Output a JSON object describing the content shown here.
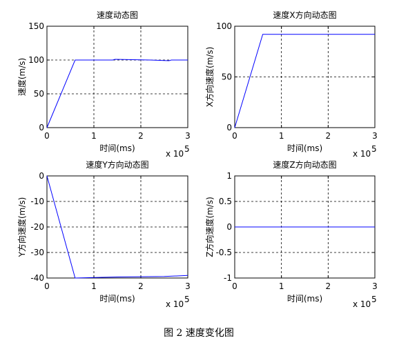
{
  "chart_data": [
    {
      "type": "line",
      "title": "速度动态图",
      "x_label": "时间(ms)",
      "y_label": "速度(m/s)",
      "x_scale": {
        "base": "x 10",
        "exponent": "5"
      },
      "x": [
        0,
        0.6,
        1.4,
        1.45,
        2.2,
        2.6,
        2.65,
        3
      ],
      "series": [
        {
          "name": "速度",
          "color": "#0000ff",
          "values": [
            0,
            100,
            100,
            101,
            100,
            99,
            100,
            100
          ]
        }
      ],
      "xlim": [
        0,
        3
      ],
      "xticks": [
        0,
        1,
        2,
        3
      ],
      "ylim": [
        0,
        150
      ],
      "yticks": [
        0,
        50,
        100,
        150
      ],
      "grid": true
    },
    {
      "type": "line",
      "title": "速度X方向动态图",
      "x_label": "时间(ms)",
      "y_label": "X方向速度(m/s)",
      "x_scale": {
        "base": "x 10",
        "exponent": "5"
      },
      "x": [
        0,
        0.6,
        3
      ],
      "series": [
        {
          "name": "X方向速度",
          "color": "#0000ff",
          "values": [
            0,
            92,
            92
          ]
        }
      ],
      "xlim": [
        0,
        3
      ],
      "xticks": [
        0,
        1,
        2,
        3
      ],
      "ylim": [
        0,
        100
      ],
      "yticks": [
        0,
        50,
        100
      ],
      "grid": true
    },
    {
      "type": "line",
      "title": "速度Y方向动态图",
      "x_label": "时间(ms)",
      "y_label": "Y方向速度(m/s)",
      "x_scale": {
        "base": "x 10",
        "exponent": "5"
      },
      "x": [
        0,
        0.6,
        1.5,
        2.5,
        3
      ],
      "series": [
        {
          "name": "Y方向速度",
          "color": "#0000ff",
          "values": [
            0,
            -40,
            -39.6,
            -39.4,
            -39
          ]
        }
      ],
      "xlim": [
        0,
        3
      ],
      "xticks": [
        0,
        1,
        2,
        3
      ],
      "ylim": [
        -40,
        0
      ],
      "yticks": [
        -40,
        -30,
        -20,
        -10,
        0
      ],
      "grid": true
    },
    {
      "type": "line",
      "title": "速度Z方向动态图",
      "x_label": "时间(ms)",
      "y_label": "Z方向速度(m/s)",
      "x_scale": {
        "base": "x 10",
        "exponent": "5"
      },
      "x": [
        0,
        3
      ],
      "series": [
        {
          "name": "Z方向速度",
          "color": "#0000ff",
          "values": [
            0,
            0
          ]
        }
      ],
      "xlim": [
        0,
        3
      ],
      "xticks": [
        0,
        1,
        2,
        3
      ],
      "ylim": [
        -1,
        1
      ],
      "yticks": [
        -1,
        -0.5,
        0,
        0.5,
        1
      ],
      "grid": true
    }
  ],
  "caption": "图 2  速度变化图"
}
